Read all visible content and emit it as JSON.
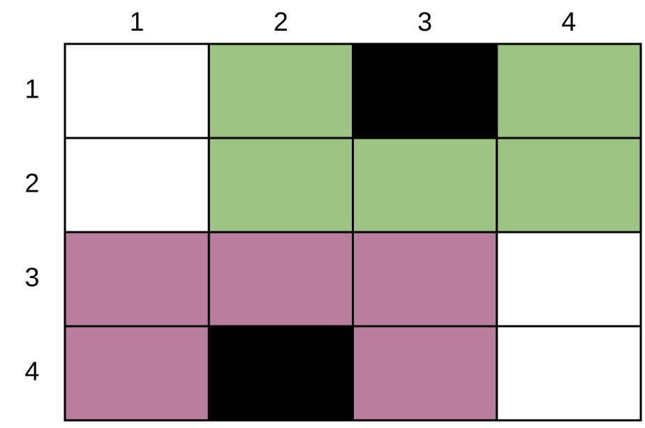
{
  "grid": {
    "column_labels": [
      "1",
      "2",
      "3",
      "4"
    ],
    "row_labels": [
      "1",
      "2",
      "3",
      "4"
    ],
    "cells": [
      [
        "#ffffff",
        "#9dc384",
        "#000000",
        "#9dc384"
      ],
      [
        "#ffffff",
        "#9dc384",
        "#9dc384",
        "#9dc384"
      ],
      [
        "#b87e9c",
        "#b87e9c",
        "#b87e9c",
        "#ffffff"
      ],
      [
        "#b87e9c",
        "#000000",
        "#b87e9c",
        "#ffffff"
      ]
    ]
  }
}
